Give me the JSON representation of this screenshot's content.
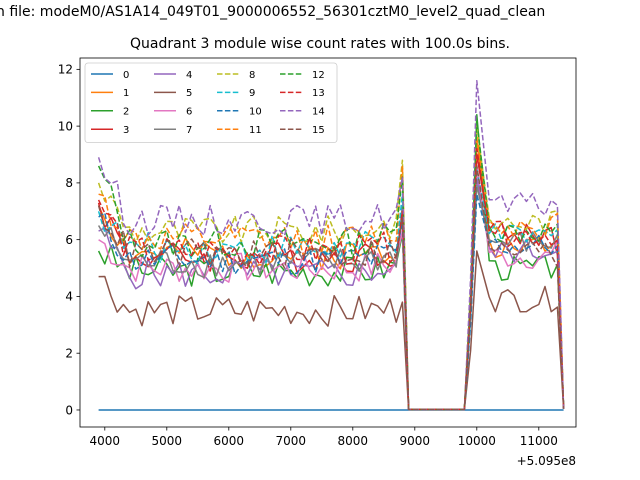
{
  "suptitle": "n file: modeM0/AS1A14_049T01_9000006552_56301cztM0_level2_quad_clean",
  "chart_data": {
    "type": "line",
    "title": "Quadrant 3 module wise count rates with 100.0s bins.",
    "xlabel": "",
    "ylabel": "",
    "x_offset_label": "+5.095e8",
    "xlim": [
      3600,
      11600
    ],
    "ylim": [
      -0.6,
      12.4
    ],
    "xticks": [
      4000,
      5000,
      6000,
      7000,
      8000,
      9000,
      10000,
      11000
    ],
    "yticks": [
      0,
      2,
      4,
      6,
      8,
      10,
      12
    ],
    "grid": false,
    "legend": {
      "placement": "top-left",
      "columns": 4
    },
    "x_start": 3900,
    "x_step": 100,
    "gap": {
      "start": 8900,
      "end": 9800
    },
    "x_end": 11400,
    "series": [
      {
        "name": "0",
        "color": "#1f77b4",
        "dash": "solid",
        "seed": 0,
        "pre": [
          0,
          0
        ],
        "post": [
          0,
          0
        ]
      },
      {
        "name": "1",
        "color": "#ff7f0e",
        "dash": "solid",
        "seed": 1,
        "pre": [
          7.2,
          5.5,
          7.0
        ],
        "post": [
          9.5,
          5.8,
          6.0
        ]
      },
      {
        "name": "2",
        "color": "#2ca02c",
        "dash": "solid",
        "seed": 2,
        "pre": [
          5.6,
          4.9,
          6.2
        ],
        "post": [
          10.4,
          5.0,
          5.2
        ]
      },
      {
        "name": "3",
        "color": "#d62728",
        "dash": "solid",
        "seed": 3,
        "pre": [
          7.3,
          5.4,
          6.9
        ],
        "post": [
          9.0,
          6.2,
          5.6
        ]
      },
      {
        "name": "4",
        "color": "#9467bd",
        "dash": "solid",
        "seed": 4,
        "pre": [
          6.3,
          4.8,
          6.8
        ],
        "post": [
          8.2,
          5.6,
          5.8
        ]
      },
      {
        "name": "5",
        "color": "#8c564b",
        "dash": "solid",
        "seed": 5,
        "pre": [
          4.7,
          3.5,
          3.8
        ],
        "post": [
          5.6,
          3.9,
          3.9
        ]
      },
      {
        "name": "6",
        "color": "#e377c2",
        "dash": "solid",
        "seed": 6,
        "pre": [
          6.0,
          5.0,
          6.3
        ],
        "post": [
          8.6,
          5.4,
          5.3
        ]
      },
      {
        "name": "7",
        "color": "#7f7f7f",
        "dash": "solid",
        "seed": 7,
        "pre": [
          6.5,
          5.2,
          7.2
        ],
        "post": [
          7.9,
          5.9,
          5.6
        ]
      },
      {
        "name": "8",
        "color": "#bcbd22",
        "dash": "dashed",
        "seed": 8,
        "pre": [
          8.0,
          6.3,
          8.8
        ],
        "post": [
          10.0,
          6.6,
          6.5
        ]
      },
      {
        "name": "9",
        "color": "#17becf",
        "dash": "dashed",
        "seed": 9,
        "pre": [
          7.0,
          5.7,
          7.6
        ],
        "post": [
          8.5,
          6.1,
          5.9
        ]
      },
      {
        "name": "10",
        "color": "#1f77b4",
        "dash": "dashed",
        "seed": 10,
        "pre": [
          6.8,
          5.3,
          6.6
        ],
        "post": [
          7.6,
          5.8,
          5.4
        ]
      },
      {
        "name": "11",
        "color": "#ff7f0e",
        "dash": "dashed",
        "seed": 11,
        "pre": [
          7.6,
          6.0,
          8.6
        ],
        "post": [
          9.6,
          6.5,
          6.6
        ]
      },
      {
        "name": "12",
        "color": "#2ca02c",
        "dash": "dashed",
        "seed": 12,
        "pre": [
          8.6,
          5.9,
          8.2
        ],
        "post": [
          10.2,
          6.3,
          6.3
        ]
      },
      {
        "name": "13",
        "color": "#d62728",
        "dash": "dashed",
        "seed": 13,
        "pre": [
          7.4,
          5.6,
          7.0
        ],
        "post": [
          9.2,
          6.2,
          5.8
        ]
      },
      {
        "name": "14",
        "color": "#9467bd",
        "dash": "dashed",
        "seed": 14,
        "pre": [
          8.9,
          6.7,
          8.2
        ],
        "post": [
          11.6,
          7.2,
          7.1
        ]
      },
      {
        "name": "15",
        "color": "#8c564b",
        "dash": "dashed",
        "seed": 15,
        "pre": [
          7.2,
          5.5,
          6.8
        ],
        "post": [
          8.6,
          5.6,
          5.0
        ]
      }
    ]
  }
}
